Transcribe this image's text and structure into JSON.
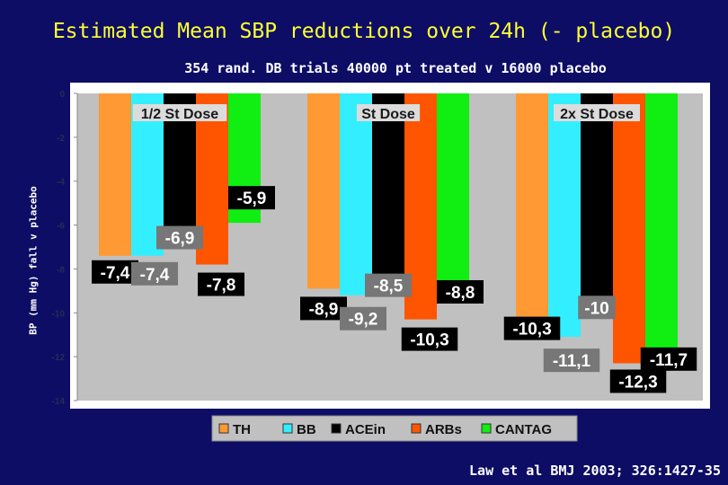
{
  "title": "Estimated Mean SBP reductions over 24h (- placebo)",
  "subtitle": "354 rand. DB trials 40000 pt treated v 16000 placebo",
  "ylabel": "BP (mm Hg) fall v placebo",
  "citation": "Law et al BMJ 2003; 326:1427-35",
  "chart_data": {
    "type": "bar",
    "categories": [
      "1/2 St Dose",
      "St Dose",
      "2x St Dose"
    ],
    "series": [
      {
        "name": "TH",
        "color": "#ff9933",
        "values": [
          -7.4,
          -8.9,
          -10.3
        ],
        "labels": [
          "-7,4",
          "-8,9",
          "-10,3"
        ]
      },
      {
        "name": "BB",
        "color": "#33eeff",
        "values": [
          -7.4,
          -9.2,
          -11.1
        ],
        "labels": [
          "-7,4",
          "-9,2",
          "-11,1"
        ]
      },
      {
        "name": "ACEin",
        "color": "#000000",
        "values": [
          -6.9,
          -8.5,
          -10.0
        ],
        "labels": [
          "-6,9",
          "-8,5",
          "-10"
        ]
      },
      {
        "name": "ARBs",
        "color": "#ff5500",
        "values": [
          -7.8,
          -10.3,
          -12.3
        ],
        "labels": [
          "-7,8",
          "-10,3",
          "-12,3"
        ]
      },
      {
        "name": "CANTAG",
        "color": "#11ee11",
        "values": [
          -5.9,
          -8.8,
          -11.7
        ],
        "labels": [
          "-5,9",
          "-8,8",
          "-11,7"
        ]
      }
    ],
    "ylim": [
      -14,
      0
    ],
    "yticks": [
      0,
      -2,
      -4,
      -6,
      -8,
      -10,
      -12,
      -14
    ],
    "grid": false,
    "legend": "bottom"
  }
}
